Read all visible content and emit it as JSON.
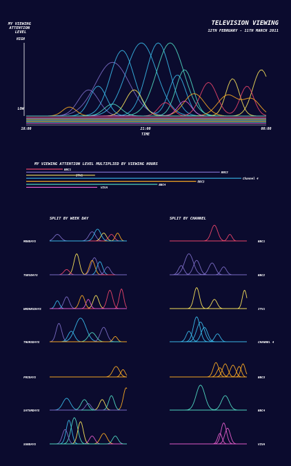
{
  "chart_data": {
    "type": "line",
    "title": "TELEVISION VIEWING",
    "subtitle": "12TH FEBRUARY - 11TH MARCH 2011",
    "ylabel": "MY VIEWING ATTENTION LEVEL",
    "y_high_label": "HIGH",
    "y_low_label": "LOW",
    "xlabel": "TIME",
    "xticks": [
      "18:00",
      "21:00",
      "00:00"
    ],
    "colors": {
      "background": "#0b0b2e",
      "BBC1": "#e8446a",
      "BBC2": "#7a6bc4",
      "ITV1": "#f6e05a",
      "Channel 4": "#38b7e8",
      "BBC3": "#f5a623",
      "BBC4": "#4fd6c0",
      "VIVA": "#e05bc8"
    },
    "main_series": [
      {
        "channel": "BBC2",
        "peaks": [
          [
            0.36,
            0.72,
            0.1
          ]
        ]
      },
      {
        "channel": "BBC2",
        "peaks": [
          [
            0.26,
            0.35,
            0.06
          ]
        ]
      },
      {
        "channel": "Channel 4",
        "peaks": [
          [
            0.4,
            0.88,
            0.07
          ],
          [
            0.63,
            0.55,
            0.05
          ]
        ]
      },
      {
        "channel": "Channel 4",
        "peaks": [
          [
            0.48,
            0.98,
            0.09
          ]
        ]
      },
      {
        "channel": "Channel 4",
        "peaks": [
          [
            0.3,
            0.4,
            0.05
          ]
        ]
      },
      {
        "channel": "Channel 4",
        "peaks": [
          [
            0.55,
            0.98,
            0.07
          ]
        ]
      },
      {
        "channel": "BBC4",
        "peaks": [
          [
            0.6,
            0.98,
            0.08
          ]
        ]
      },
      {
        "channel": "BBC4",
        "peaks": [
          [
            0.66,
            0.62,
            0.05
          ]
        ]
      },
      {
        "channel": "ITV1",
        "peaks": [
          [
            0.45,
            0.35,
            0.05
          ],
          [
            0.86,
            0.5,
            0.04
          ]
        ]
      },
      {
        "channel": "ITV1",
        "peaks": [
          [
            0.98,
            0.62,
            0.05
          ]
        ]
      },
      {
        "channel": "BBC1",
        "peaks": [
          [
            0.76,
            0.45,
            0.05
          ],
          [
            0.92,
            0.4,
            0.04
          ]
        ]
      },
      {
        "channel": "BBC1",
        "peaks": [
          [
            0.58,
            0.18,
            0.04
          ]
        ]
      },
      {
        "channel": "BBC3",
        "peaks": [
          [
            0.84,
            0.28,
            0.06
          ],
          [
            0.94,
            0.22,
            0.05
          ]
        ]
      },
      {
        "channel": "BBC3",
        "peaks": [
          [
            0.7,
            0.3,
            0.06
          ]
        ]
      },
      {
        "channel": "BBC3",
        "peaks": [
          [
            0.18,
            0.12,
            0.04
          ]
        ]
      },
      {
        "channel": "VIVA",
        "peaks": [
          [
            0.66,
            0.2,
            0.04
          ]
        ]
      },
      {
        "channel": "BBC4",
        "peaks": [
          [
            0.36,
            0.16,
            0.05
          ]
        ]
      }
    ],
    "bars": {
      "title": "MY VIEWING ATTENTION LEVEL MULTIPLIED BY VIEWING HOURS",
      "items": [
        {
          "label": "BBC1",
          "value": 0.17,
          "label_after": true
        },
        {
          "label": "BBC2",
          "value": 0.9,
          "label_after": true
        },
        {
          "label": "ITV1",
          "value": 0.32,
          "label_after": true
        },
        {
          "label": "Channel 4",
          "value": 1.0,
          "label_after": true
        },
        {
          "label": "BBC3",
          "value": 0.79,
          "label_after": true
        },
        {
          "label": "BBC4",
          "value": 0.61,
          "label_after": true
        },
        {
          "label": "VIVA",
          "value": 0.33,
          "label_after": true
        }
      ]
    },
    "small_multiples": {
      "weekday_title": "SPLIT BY WEEK DAY",
      "channel_title": "SPLIT BY CHANNEL",
      "weekdays": [
        {
          "label": "MONDAYS",
          "lines": [
            {
              "channel": "BBC2",
              "peaks": [
                [
                  0.1,
                  0.25,
                  0.06
                ]
              ]
            },
            {
              "channel": "BBC2",
              "peaks": [
                [
                  0.55,
                  0.35,
                  0.06
                ]
              ]
            },
            {
              "channel": "ITV1",
              "peaks": [
                [
                  0.7,
                  0.3,
                  0.05
                ]
              ]
            },
            {
              "channel": "BBC3",
              "peaks": [
                [
                  0.88,
                  0.3,
                  0.04
                ]
              ]
            },
            {
              "channel": "BBC1",
              "peaks": [
                [
                  0.8,
                  0.25,
                  0.05
                ]
              ]
            },
            {
              "channel": "Channel 4",
              "peaks": [
                [
                  0.62,
                  0.45,
                  0.06
                ]
              ]
            }
          ]
        },
        {
          "label": "TUESDAYS",
          "lines": [
            {
              "channel": "ITV1",
              "peaks": [
                [
                  0.35,
                  0.8,
                  0.05
                ]
              ]
            },
            {
              "channel": "BBC2",
              "peaks": [
                [
                  0.58,
                  0.65,
                  0.06
                ]
              ]
            },
            {
              "channel": "BBC3",
              "peaks": [
                [
                  0.55,
                  0.55,
                  0.05
                ]
              ]
            },
            {
              "channel": "Channel 4",
              "peaks": [
                [
                  0.65,
                  0.5,
                  0.05
                ]
              ]
            },
            {
              "channel": "BBC1",
              "peaks": [
                [
                  0.22,
                  0.2,
                  0.05
                ]
              ]
            },
            {
              "channel": "BBC2",
              "peaks": [
                [
                  0.75,
                  0.3,
                  0.05
                ]
              ]
            }
          ]
        },
        {
          "label": "WEDNESDAYS",
          "lines": [
            {
              "channel": "BBC2",
              "peaks": [
                [
                  0.22,
                  0.45,
                  0.05
                ]
              ]
            },
            {
              "channel": "Channel 4",
              "peaks": [
                [
                  0.1,
                  0.3,
                  0.04
                ]
              ]
            },
            {
              "channel": "BBC3",
              "peaks": [
                [
                  0.42,
                  0.5,
                  0.05
                ]
              ]
            },
            {
              "channel": "BBC1",
              "peaks": [
                [
                  0.93,
                  0.75,
                  0.04
                ]
              ]
            },
            {
              "channel": "ITV1",
              "peaks": [
                [
                  0.6,
                  0.5,
                  0.05
                ]
              ]
            },
            {
              "channel": "BBC1",
              "peaks": [
                [
                  0.78,
                  0.7,
                  0.05
                ]
              ]
            },
            {
              "channel": "VIVA",
              "peaks": [
                [
                  0.5,
                  0.35,
                  0.04
                ]
              ]
            }
          ]
        },
        {
          "label": "THURSDAYS",
          "lines": [
            {
              "channel": "BBC2",
              "peaks": [
                [
                  0.12,
                  0.7,
                  0.05
                ]
              ]
            },
            {
              "channel": "Channel 4",
              "peaks": [
                [
                  0.4,
                  0.9,
                  0.1
                ]
              ]
            },
            {
              "channel": "Channel 4",
              "peaks": [
                [
                  0.28,
                  0.4,
                  0.06
                ]
              ]
            },
            {
              "channel": "BBC2",
              "peaks": [
                [
                  0.7,
                  0.55,
                  0.06
                ]
              ]
            },
            {
              "channel": "BBC4",
              "peaks": [
                [
                  0.55,
                  0.35,
                  0.07
                ]
              ]
            },
            {
              "channel": "BBC3",
              "peaks": [
                [
                  0.85,
                  0.2,
                  0.04
                ]
              ]
            }
          ]
        },
        {
          "label": "FRIDAYS",
          "lines": [
            {
              "channel": "BBC3",
              "peaks": [
                [
                  0.86,
                  0.4,
                  0.06
                ]
              ]
            },
            {
              "channel": "BBC3",
              "peaks": [
                [
                  0.95,
                  0.28,
                  0.04
                ]
              ]
            }
          ]
        },
        {
          "label": "SATURDAYS",
          "lines": [
            {
              "channel": "Channel 4",
              "peaks": [
                [
                  0.22,
                  0.45,
                  0.07
                ]
              ]
            },
            {
              "channel": "BBC4",
              "peaks": [
                [
                  0.45,
                  0.4,
                  0.06
                ]
              ]
            },
            {
              "channel": "ITV1",
              "peaks": [
                [
                  0.68,
                  0.4,
                  0.05
                ]
              ]
            },
            {
              "channel": "BBC3",
              "peaks": [
                [
                  0.99,
                  0.85,
                  0.05
                ]
              ]
            },
            {
              "channel": "BBC4",
              "peaks": [
                [
                  0.8,
                  0.55,
                  0.05
                ]
              ]
            },
            {
              "channel": "BBC2",
              "peaks": [
                [
                  0.5,
                  0.25,
                  0.05
                ]
              ]
            }
          ]
        },
        {
          "label": "SUNDAYS",
          "lines": [
            {
              "channel": "Channel 4",
              "peaks": [
                [
                  0.25,
                  0.9,
                  0.05
                ]
              ]
            },
            {
              "channel": "BBC4",
              "peaks": [
                [
                  0.32,
                  1.0,
                  0.06
                ]
              ]
            },
            {
              "channel": "ITV1",
              "peaks": [
                [
                  0.4,
                  0.85,
                  0.05
                ]
              ]
            },
            {
              "channel": "BBC2",
              "peaks": [
                [
                  0.2,
                  0.55,
                  0.05
                ]
              ]
            },
            {
              "channel": "BBC3",
              "peaks": [
                [
                  0.7,
                  0.4,
                  0.06
                ]
              ]
            },
            {
              "channel": "VIVA",
              "peaks": [
                [
                  0.55,
                  0.3,
                  0.05
                ]
              ]
            },
            {
              "channel": "BBC4",
              "peaks": [
                [
                  0.85,
                  0.3,
                  0.05
                ]
              ]
            }
          ]
        }
      ],
      "channels": [
        {
          "label": "BBC1",
          "lines": [
            {
              "channel": "BBC1",
              "peaks": [
                [
                  0.58,
                  0.6,
                  0.06
                ]
              ]
            },
            {
              "channel": "BBC1",
              "peaks": [
                [
                  0.78,
                  0.25,
                  0.04
                ]
              ]
            }
          ]
        },
        {
          "label": "BBC2",
          "lines": [
            {
              "channel": "BBC2",
              "peaks": [
                [
                  0.25,
                  0.8,
                  0.08
                ]
              ]
            },
            {
              "channel": "BBC2",
              "peaks": [
                [
                  0.35,
                  0.55,
                  0.06
                ]
              ]
            },
            {
              "channel": "BBC2",
              "peaks": [
                [
                  0.15,
                  0.35,
                  0.05
                ]
              ]
            },
            {
              "channel": "BBC2",
              "peaks": [
                [
                  0.55,
                  0.45,
                  0.06
                ]
              ]
            },
            {
              "channel": "BBC2",
              "peaks": [
                [
                  0.7,
                  0.3,
                  0.05
                ]
              ]
            }
          ]
        },
        {
          "label": "ITV1",
          "lines": [
            {
              "channel": "ITV1",
              "peaks": [
                [
                  0.35,
                  0.8,
                  0.05
                ]
              ]
            },
            {
              "channel": "ITV1",
              "peaks": [
                [
                  0.58,
                  0.35,
                  0.05
                ]
              ]
            },
            {
              "channel": "ITV1",
              "peaks": [
                [
                  0.97,
                  0.7,
                  0.04
                ]
              ]
            }
          ]
        },
        {
          "label": "CHANNEL 4",
          "lines": [
            {
              "channel": "Channel 4",
              "peaks": [
                [
                  0.35,
                  0.95,
                  0.06
                ]
              ]
            },
            {
              "channel": "Channel 4",
              "peaks": [
                [
                  0.4,
                  0.75,
                  0.07
                ]
              ]
            },
            {
              "channel": "Channel 4",
              "peaks": [
                [
                  0.45,
                  0.55,
                  0.06
                ]
              ]
            },
            {
              "channel": "Channel 4",
              "peaks": [
                [
                  0.25,
                  0.4,
                  0.05
                ]
              ]
            },
            {
              "channel": "Channel 4",
              "peaks": [
                [
                  0.62,
                  0.3,
                  0.05
                ]
              ]
            }
          ]
        },
        {
          "label": "BBC3",
          "lines": [
            {
              "channel": "BBC3",
              "peaks": [
                [
                  0.6,
                  0.55,
                  0.05
                ],
                [
                  0.9,
                  0.4,
                  0.04
                ]
              ]
            },
            {
              "channel": "BBC3",
              "peaks": [
                [
                  0.72,
                  0.5,
                  0.05
                ]
              ]
            },
            {
              "channel": "BBC3",
              "peaks": [
                [
                  0.82,
                  0.45,
                  0.05
                ]
              ]
            },
            {
              "channel": "BBC3",
              "peaks": [
                [
                  0.95,
                  0.5,
                  0.04
                ]
              ]
            },
            {
              "channel": "BBC3",
              "peaks": [
                [
                  0.65,
                  0.35,
                  0.05
                ]
              ]
            }
          ]
        },
        {
          "label": "BBC4",
          "lines": [
            {
              "channel": "BBC4",
              "peaks": [
                [
                  0.4,
                  0.95,
                  0.08
                ],
                [
                  0.72,
                  0.55,
                  0.07
                ]
              ]
            }
          ]
        },
        {
          "label": "VIVA",
          "lines": [
            {
              "channel": "VIVA",
              "peaks": [
                [
                  0.7,
                  0.8,
                  0.05
                ]
              ]
            },
            {
              "channel": "VIVA",
              "peaks": [
                [
                  0.75,
                  0.6,
                  0.05
                ]
              ]
            },
            {
              "channel": "VIVA",
              "peaks": [
                [
                  0.65,
                  0.4,
                  0.04
                ]
              ]
            }
          ]
        }
      ]
    }
  }
}
